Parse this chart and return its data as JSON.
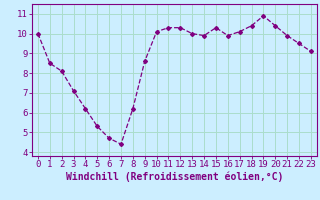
{
  "x": [
    0,
    1,
    2,
    3,
    4,
    5,
    6,
    7,
    8,
    9,
    10,
    11,
    12,
    13,
    14,
    15,
    16,
    17,
    18,
    19,
    20,
    21,
    22,
    23
  ],
  "y": [
    10.0,
    8.5,
    8.1,
    7.1,
    6.2,
    5.3,
    4.7,
    4.4,
    6.2,
    8.6,
    10.1,
    10.3,
    10.3,
    10.0,
    9.9,
    10.3,
    9.9,
    10.1,
    10.4,
    10.9,
    10.4,
    9.9,
    9.5,
    9.1
  ],
  "line_color": "#800080",
  "marker": "D",
  "marker_size": 2,
  "bg_color": "#cceeff",
  "grid_color": "#aaddcc",
  "xlabel": "Windchill (Refroidissement éolien,°C)",
  "xlabel_fontsize": 7,
  "xtick_labels": [
    "0",
    "1",
    "2",
    "3",
    "4",
    "5",
    "6",
    "7",
    "8",
    "9",
    "10",
    "11",
    "12",
    "13",
    "14",
    "15",
    "16",
    "17",
    "18",
    "19",
    "20",
    "21",
    "22",
    "23"
  ],
  "ytick_labels": [
    "4",
    "5",
    "6",
    "7",
    "8",
    "9",
    "10",
    "11"
  ],
  "ylim": [
    3.8,
    11.5
  ],
  "xlim": [
    -0.5,
    23.5
  ],
  "tick_color": "#800080",
  "tick_fontsize": 6.5,
  "axis_label_color": "#800080"
}
